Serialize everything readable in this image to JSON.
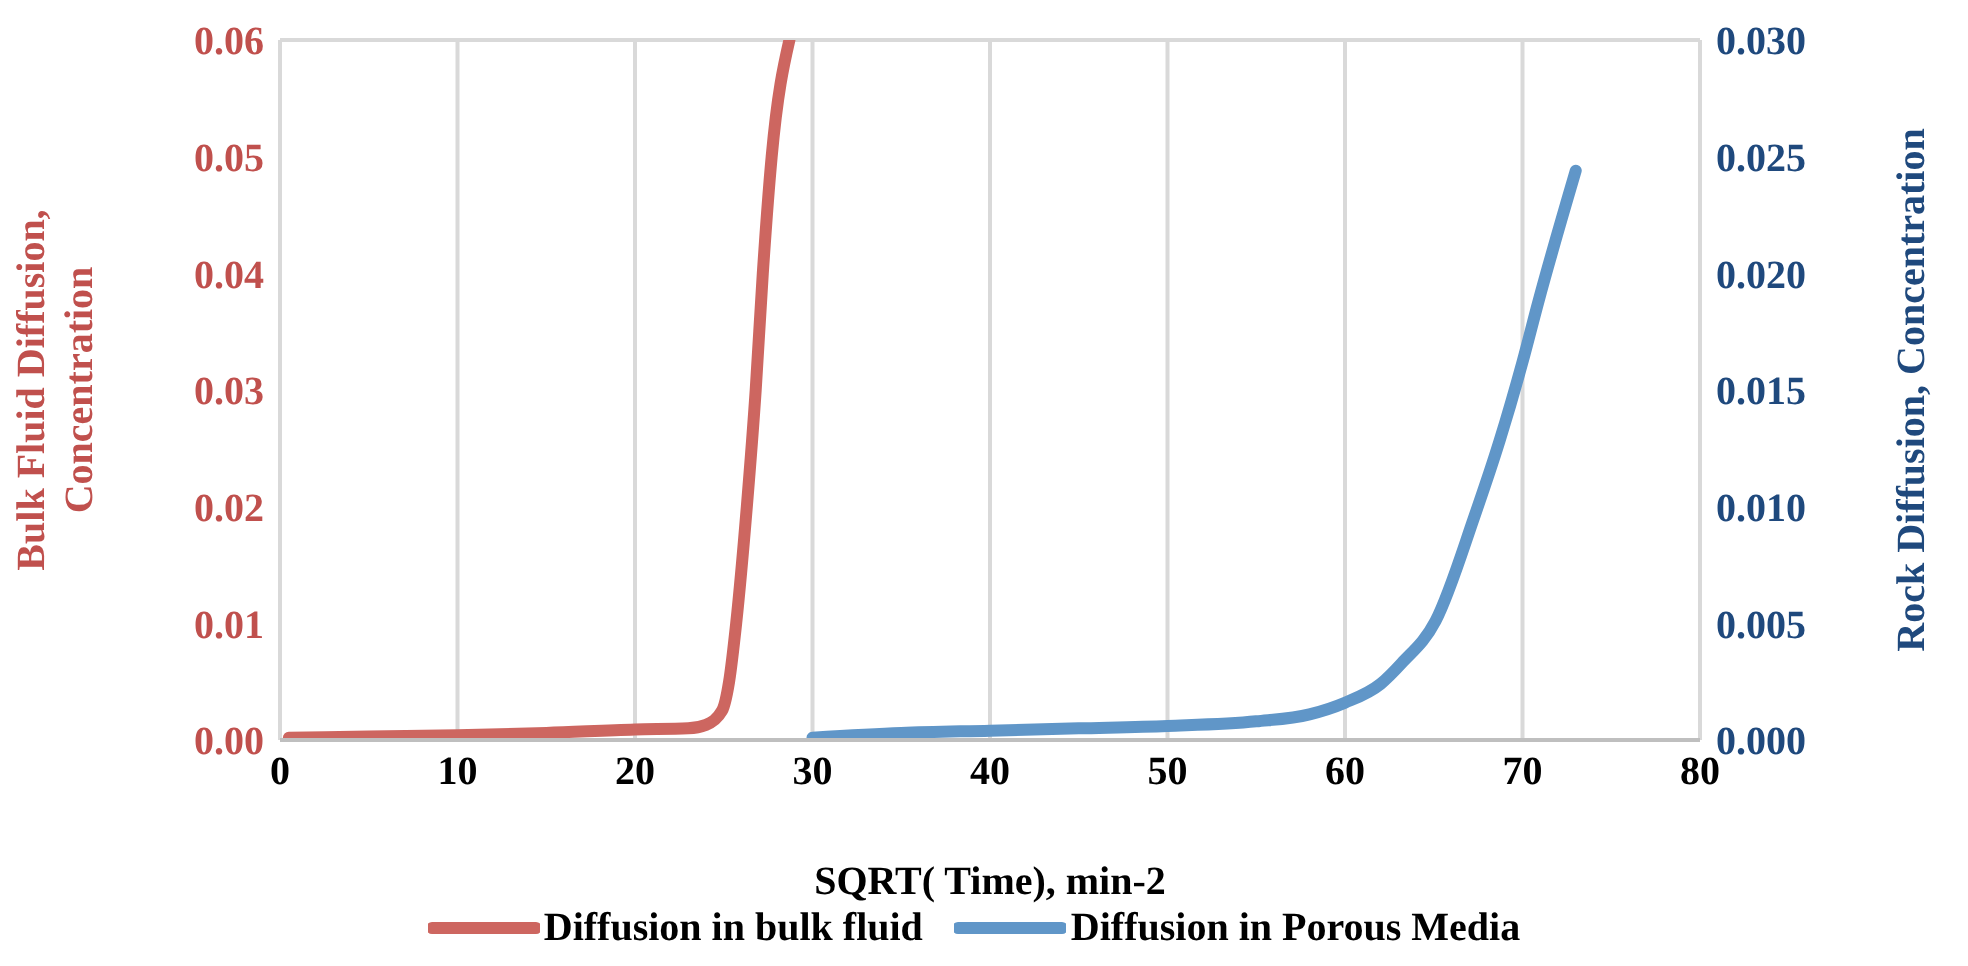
{
  "chart_data": {
    "type": "line",
    "xlabel": "SQRT( Time), min-2",
    "ylabel": "Bulk Fluid Diffusion, Concentration",
    "y2label": "Rock Diffusion, Concentration",
    "xlim": [
      0,
      80
    ],
    "xticks": [
      0,
      10,
      20,
      30,
      40,
      50,
      60,
      70,
      80
    ],
    "ylim": [
      0,
      0.06
    ],
    "yticks": [
      {
        "value": 0,
        "label": "0.00"
      },
      {
        "value": 0.01,
        "label": "0.01"
      },
      {
        "value": 0.02,
        "label": "0.02"
      },
      {
        "value": 0.03,
        "label": "0.03"
      },
      {
        "value": 0.04,
        "label": "0.04"
      },
      {
        "value": 0.05,
        "label": "0.05"
      },
      {
        "value": 0.06,
        "label": "0.06"
      }
    ],
    "y2lim": [
      0,
      0.03
    ],
    "y2ticks": [
      {
        "value": 0,
        "label": "0.000"
      },
      {
        "value": 0.005,
        "label": "0.005"
      },
      {
        "value": 0.01,
        "label": "0.010"
      },
      {
        "value": 0.015,
        "label": "0.015"
      },
      {
        "value": 0.02,
        "label": "0.020"
      },
      {
        "value": 0.025,
        "label": "0.025"
      },
      {
        "value": 0.03,
        "label": "0.030"
      }
    ],
    "grid": true,
    "legend": "bottom",
    "marker": "none",
    "line_style": "solid",
    "series": [
      {
        "name": "Diffusion in bulk fluid",
        "color": "#cd6660",
        "x": [
          0.5,
          5,
          10,
          15,
          20,
          23,
          24,
          24.9,
          25.3,
          25.7,
          26.3,
          26.8,
          27.2,
          27.7,
          28.7
        ],
        "values": [
          0.0002,
          0.0003,
          0.0004,
          0.0006,
          0.0009,
          0.001,
          0.0013,
          0.0025,
          0.005,
          0.01,
          0.02,
          0.03,
          0.04,
          0.05,
          0.06
        ]
      },
      {
        "name": "Diffusion in Porous Media",
        "color": "#6096c8",
        "axis": "y2",
        "x": [
          30,
          35,
          40,
          45,
          50,
          55,
          58,
          60,
          62,
          63.2,
          65.1,
          67.3,
          68.7,
          70,
          70.9,
          73
        ],
        "values": [
          0.0001,
          0.0003,
          0.0004,
          0.0005,
          0.0006,
          0.0008,
          0.0011,
          0.0016,
          0.0024,
          0.0033,
          0.0051,
          0.0096,
          0.0128,
          0.0162,
          0.0188,
          0.0244
        ]
      }
    ]
  }
}
